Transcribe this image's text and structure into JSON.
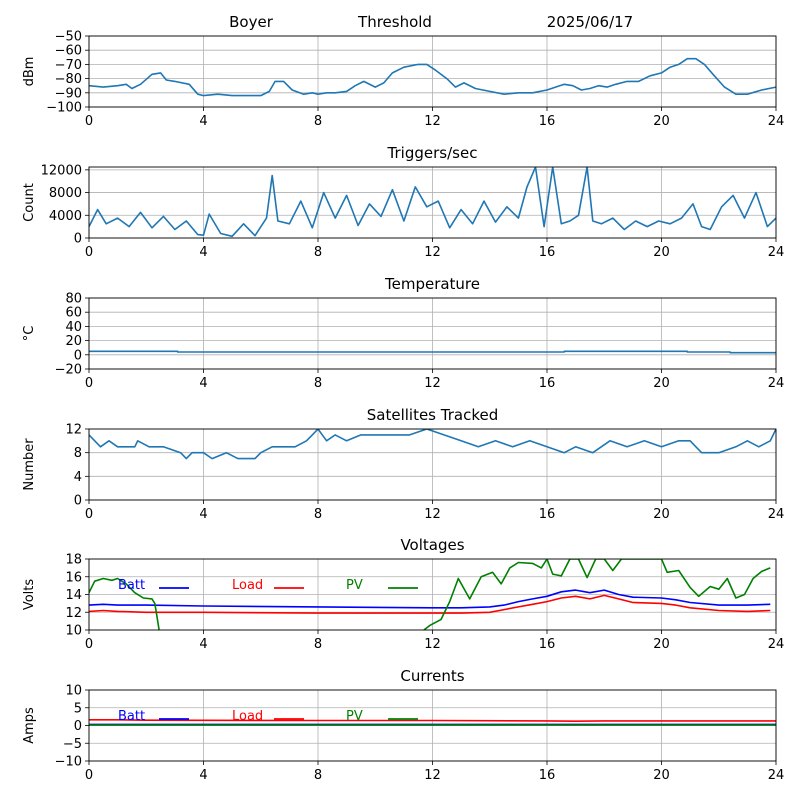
{
  "header": {
    "station": "Boyer",
    "mode": "Threshold",
    "date": "2025/06/17"
  },
  "chart_data": [
    {
      "type": "line",
      "title": "",
      "ylabel": "dBm",
      "xlim": [
        0,
        24
      ],
      "ylim": [
        -100,
        -50
      ],
      "xticks": [
        0,
        4,
        8,
        12,
        16,
        20,
        24
      ],
      "yticks": [
        -100,
        -90,
        -80,
        -70,
        -60,
        -50
      ],
      "grid": true,
      "series": [
        {
          "color": "#1f77b4",
          "x": [
            0,
            0.5,
            1,
            1.3,
            1.5,
            1.8,
            2.2,
            2.5,
            2.7,
            3,
            3.5,
            3.8,
            4,
            4.5,
            5,
            5.5,
            6,
            6.3,
            6.5,
            6.8,
            7.1,
            7.5,
            7.8,
            8,
            8.3,
            8.6,
            9,
            9.3,
            9.6,
            10,
            10.3,
            10.6,
            11,
            11.5,
            11.8,
            12.1,
            12.5,
            12.8,
            13.1,
            13.5,
            14,
            14.5,
            15,
            15.5,
            16,
            16.3,
            16.6,
            16.9,
            17.2,
            17.5,
            17.8,
            18.1,
            18.4,
            18.8,
            19.2,
            19.6,
            20,
            20.3,
            20.6,
            20.9,
            21.2,
            21.5,
            21.8,
            22.2,
            22.6,
            23,
            23.5,
            24
          ],
          "y": [
            -85,
            -86,
            -85,
            -84,
            -87,
            -84,
            -77,
            -76,
            -81,
            -82,
            -84,
            -91,
            -92,
            -91,
            -92,
            -92,
            -92,
            -89,
            -82,
            -82,
            -88,
            -91,
            -90,
            -91,
            -90,
            -90,
            -89,
            -85,
            -82,
            -86,
            -83,
            -76,
            -72,
            -70,
            -70,
            -74,
            -80,
            -86,
            -83,
            -87,
            -89,
            -91,
            -90,
            -90,
            -88,
            -86,
            -84,
            -85,
            -88,
            -87,
            -85,
            -86,
            -84,
            -82,
            -82,
            -78,
            -76,
            -72,
            -70,
            -66,
            -66,
            -70,
            -77,
            -86,
            -91,
            -91,
            -88,
            -86
          ]
        }
      ]
    },
    {
      "type": "line",
      "title": "Triggers/sec",
      "ylabel": "Count",
      "xlim": [
        0,
        24
      ],
      "ylim": [
        0,
        12500
      ],
      "xticks": [
        0,
        4,
        8,
        12,
        16,
        20,
        24
      ],
      "yticks": [
        0,
        4000,
        8000,
        12000
      ],
      "grid": true,
      "series": [
        {
          "color": "#1f77b4",
          "x": [
            0,
            0.3,
            0.6,
            1,
            1.4,
            1.8,
            2.2,
            2.6,
            3,
            3.4,
            3.8,
            4,
            4.2,
            4.6,
            5,
            5.4,
            5.8,
            6.2,
            6.4,
            6.6,
            7,
            7.4,
            7.8,
            8.2,
            8.6,
            9,
            9.4,
            9.8,
            10.2,
            10.6,
            11,
            11.4,
            11.8,
            12.2,
            12.6,
            13,
            13.4,
            13.8,
            14.2,
            14.6,
            15,
            15.3,
            15.6,
            15.9,
            16.2,
            16.5,
            16.8,
            17.1,
            17.4,
            17.6,
            17.9,
            18.3,
            18.7,
            19.1,
            19.5,
            19.9,
            20.3,
            20.7,
            21.1,
            21.4,
            21.7,
            22.1,
            22.5,
            22.9,
            23.3,
            23.7,
            24
          ],
          "y": [
            2000,
            5000,
            2500,
            3500,
            2000,
            4500,
            1800,
            3800,
            1500,
            3000,
            600,
            500,
            4200,
            800,
            300,
            2500,
            400,
            3500,
            11000,
            3000,
            2500,
            6500,
            1800,
            8000,
            3500,
            7500,
            2200,
            6000,
            3800,
            8500,
            3000,
            9000,
            5500,
            6500,
            1800,
            5000,
            2500,
            6500,
            2800,
            5500,
            3500,
            9000,
            12500,
            2000,
            12500,
            2500,
            3000,
            4000,
            12500,
            3000,
            2500,
            3500,
            1500,
            3000,
            2000,
            3000,
            2500,
            3500,
            6000,
            2000,
            1500,
            5500,
            7500,
            3500,
            8000,
            2000,
            3500
          ]
        }
      ]
    },
    {
      "type": "line",
      "title": "Temperature",
      "ylabel": "°C",
      "xlim": [
        0,
        24
      ],
      "ylim": [
        -20,
        80
      ],
      "xticks": [
        0,
        4,
        8,
        12,
        16,
        20,
        24
      ],
      "yticks": [
        -20,
        0,
        20,
        40,
        60,
        80
      ],
      "grid": true,
      "series": [
        {
          "color": "#1f77b4",
          "x": [
            0,
            3.1,
            3.1,
            16.6,
            16.6,
            20.9,
            20.9,
            22.4,
            22.4,
            24
          ],
          "y": [
            5,
            5,
            4,
            4,
            5,
            5,
            4,
            4,
            3,
            3
          ]
        }
      ]
    },
    {
      "type": "line",
      "title": "Satellites Tracked",
      "ylabel": "Number",
      "xlim": [
        0,
        24
      ],
      "ylim": [
        0,
        12
      ],
      "xticks": [
        0,
        4,
        8,
        12,
        16,
        20,
        24
      ],
      "yticks": [
        0,
        4,
        8,
        12
      ],
      "grid": true,
      "series": [
        {
          "color": "#1f77b4",
          "x": [
            0,
            0.2,
            0.4,
            0.7,
            1,
            1.6,
            1.7,
            2.1,
            2.6,
            3.2,
            3.4,
            3.6,
            4,
            4.3,
            4.8,
            5.2,
            5.8,
            6,
            6.4,
            6.8,
            7.2,
            7.6,
            7.8,
            8,
            8.3,
            8.6,
            9,
            9.5,
            10,
            10.6,
            11.2,
            11.8,
            12.4,
            13,
            13.6,
            14.2,
            14.8,
            15.4,
            16,
            16.6,
            17,
            17.6,
            18.2,
            18.8,
            19.4,
            20,
            20.6,
            21,
            21.4,
            22,
            22.6,
            23,
            23.4,
            23.8,
            24
          ],
          "y": [
            11,
            10,
            9,
            10,
            9,
            9,
            10,
            9,
            9,
            8,
            7,
            8,
            8,
            7,
            8,
            7,
            7,
            8,
            9,
            9,
            9,
            10,
            11,
            12,
            10,
            11,
            10,
            11,
            11,
            11,
            11,
            12,
            11,
            10,
            9,
            10,
            9,
            10,
            9,
            8,
            9,
            8,
            10,
            9,
            10,
            9,
            10,
            10,
            8,
            8,
            9,
            10,
            9,
            10,
            12
          ]
        }
      ]
    },
    {
      "type": "line",
      "title": "Voltages",
      "ylabel": "Volts",
      "xlim": [
        0,
        24
      ],
      "ylim": [
        10,
        18
      ],
      "xticks": [
        0,
        4,
        8,
        12,
        16,
        20,
        24
      ],
      "yticks": [
        10,
        12,
        14,
        16,
        18
      ],
      "grid": true,
      "legend": [
        "Batt",
        "Load",
        "PV"
      ],
      "series": [
        {
          "name": "Batt",
          "color": "#0000ff",
          "x": [
            0,
            0.5,
            1,
            2,
            4,
            8,
            12,
            13,
            14,
            14.5,
            15,
            15.5,
            16,
            16.5,
            17,
            17.5,
            18,
            18.5,
            19,
            20,
            20.5,
            21,
            22,
            23,
            23.8
          ],
          "y": [
            12.8,
            12.9,
            12.8,
            12.8,
            12.7,
            12.6,
            12.5,
            12.5,
            12.6,
            12.8,
            13.2,
            13.5,
            13.8,
            14.3,
            14.5,
            14.2,
            14.5,
            14.0,
            13.7,
            13.6,
            13.4,
            13.1,
            12.8,
            12.8,
            12.9
          ]
        },
        {
          "name": "Load",
          "color": "#ff0000",
          "x": [
            0,
            0.5,
            1,
            2,
            4,
            8,
            12,
            13,
            14,
            14.5,
            15,
            15.5,
            16,
            16.5,
            17,
            17.5,
            18,
            18.5,
            19,
            20,
            20.5,
            21,
            22,
            23,
            23.8
          ],
          "y": [
            12.1,
            12.2,
            12.1,
            12.0,
            12.0,
            11.9,
            11.9,
            11.9,
            12.0,
            12.3,
            12.6,
            12.9,
            13.2,
            13.6,
            13.8,
            13.5,
            13.9,
            13.5,
            13.1,
            13.0,
            12.8,
            12.5,
            12.2,
            12.1,
            12.2
          ]
        },
        {
          "name": "PV",
          "color": "#008000",
          "x": [
            0,
            0.2,
            0.5,
            0.8,
            1,
            1.3,
            1.6,
            1.9,
            2.2,
            2.3,
            2.35,
            2.4,
            2.45
          ],
          "y": [
            14.2,
            15.5,
            15.8,
            15.6,
            15.8,
            15.2,
            14.2,
            13.6,
            13.5,
            13.0,
            12.0,
            11.0,
            10.0
          ]
        },
        {
          "name": "PV",
          "color": "#008000",
          "x": [
            11.7,
            11.9,
            12.3,
            12.6,
            12.9,
            13.3,
            13.7,
            14.1,
            14.4,
            14.7,
            15,
            15.5,
            15.8,
            16,
            16.2,
            16.5,
            16.8,
            17.1,
            17.4,
            17.7,
            18,
            18.3,
            18.6,
            19,
            19.5,
            20,
            20.2,
            20.6,
            21,
            21.3,
            21.7,
            22,
            22.3,
            22.6,
            22.9,
            23.2,
            23.5,
            23.8
          ],
          "y": [
            10.0,
            10.5,
            11.2,
            13.2,
            15.8,
            13.5,
            16.0,
            16.5,
            15.2,
            17.0,
            17.6,
            17.5,
            17.0,
            18.0,
            16.3,
            16.1,
            18.0,
            18.0,
            15.9,
            18.0,
            18.0,
            16.7,
            18.0,
            18.0,
            18.0,
            18.0,
            16.5,
            16.7,
            14.8,
            13.8,
            14.9,
            14.6,
            15.8,
            13.6,
            14.0,
            15.8,
            16.6,
            17.0
          ]
        }
      ]
    },
    {
      "type": "line",
      "title": "Currents",
      "ylabel": "Amps",
      "xlim": [
        0,
        24
      ],
      "ylim": [
        -10,
        10
      ],
      "xticks": [
        0,
        4,
        8,
        12,
        16,
        20,
        24
      ],
      "yticks": [
        -10,
        -5,
        0,
        5,
        10
      ],
      "grid": true,
      "legend": [
        "Batt",
        "Load",
        "PV"
      ],
      "series": [
        {
          "name": "Batt",
          "color": "#0000ff",
          "x": [
            0,
            24
          ],
          "y": [
            0.3,
            0.3
          ]
        },
        {
          "name": "Load",
          "color": "#ff0000",
          "x": [
            0,
            1,
            2,
            8,
            12,
            16,
            17,
            18,
            20,
            24
          ],
          "y": [
            1.6,
            1.6,
            1.5,
            1.4,
            1.4,
            1.3,
            1.2,
            1.3,
            1.3,
            1.3
          ]
        },
        {
          "name": "PV",
          "color": "#008000",
          "x": [
            0,
            24
          ],
          "y": [
            0.1,
            0.1
          ]
        }
      ]
    }
  ]
}
